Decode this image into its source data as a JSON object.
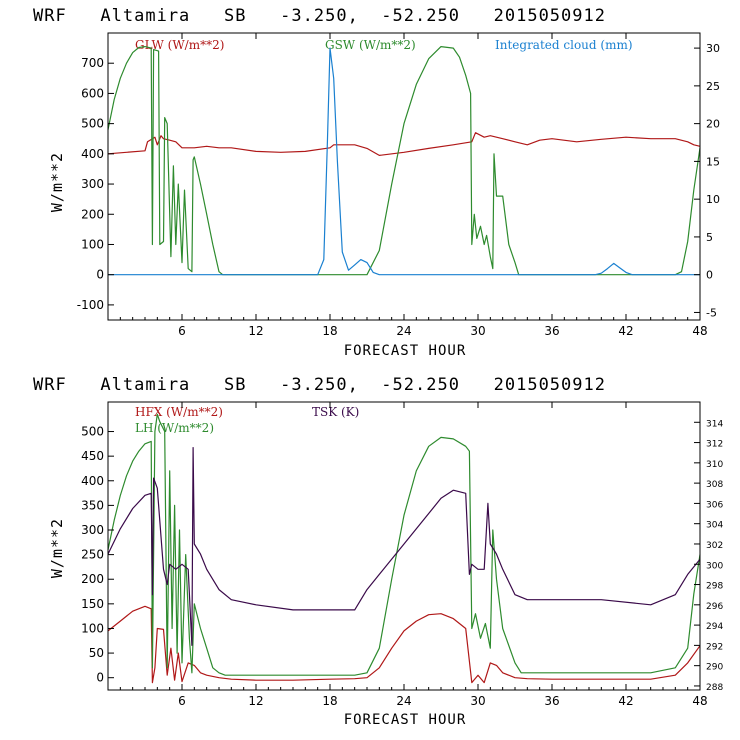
{
  "chart_data": [
    {
      "type": "line",
      "title": "WRF   Altamira   SB   -3.250,  -52.250   2015050912",
      "xlabel": "FORECAST HOUR",
      "ylabel": "W/m**2",
      "xlim": [
        0,
        48
      ],
      "ylim": [
        -150,
        800
      ],
      "xticks": [
        6,
        12,
        18,
        24,
        30,
        36,
        42,
        48
      ],
      "yticks": [
        -100,
        0,
        100,
        200,
        300,
        400,
        500,
        600,
        700
      ],
      "y2lim": [
        -6,
        32
      ],
      "y2ticks": [
        -5,
        0,
        5,
        10,
        15,
        20,
        25,
        30
      ],
      "series": [
        {
          "name": "GLW (W/m**2)",
          "color": "#b01818",
          "axis": "left",
          "x": [
            0,
            3,
            3.2,
            3.8,
            4,
            4.3,
            4.5,
            5,
            5.5,
            6,
            7,
            8,
            9,
            10,
            12,
            14,
            16,
            18,
            18.3,
            20,
            21,
            22,
            24,
            26,
            28,
            29.5,
            29.8,
            30.5,
            31,
            32,
            33,
            34,
            35,
            36,
            38,
            40,
            42,
            44,
            46,
            47,
            47.5,
            48
          ],
          "values": [
            400,
            410,
            440,
            455,
            430,
            460,
            450,
            445,
            440,
            420,
            420,
            425,
            420,
            420,
            408,
            405,
            408,
            420,
            430,
            430,
            418,
            395,
            405,
            418,
            430,
            440,
            470,
            455,
            460,
            450,
            440,
            430,
            445,
            450,
            440,
            448,
            455,
            450,
            450,
            440,
            430,
            425
          ]
        },
        {
          "name": "GSW (W/m**2)",
          "color": "#2e8b2e",
          "axis": "left",
          "x": [
            0,
            0.5,
            1,
            1.5,
            2,
            2.5,
            3,
            3.5,
            3.6,
            3.7,
            4.1,
            4.2,
            4.5,
            4.6,
            4.8,
            5.1,
            5.3,
            5.5,
            5.7,
            6.0,
            6.2,
            6.5,
            6.8,
            6.9,
            7.0,
            7.5,
            8,
            8.5,
            9,
            9.3,
            20,
            21,
            22,
            23,
            24,
            25,
            26,
            27,
            28,
            28.5,
            29,
            29.4,
            29.5,
            29.7,
            29.9,
            30.2,
            30.5,
            30.7,
            31,
            31.2,
            31.3,
            31.5,
            32,
            32.5,
            33,
            33.3,
            46,
            46.5,
            47,
            47.5,
            48
          ],
          "values": [
            480,
            580,
            650,
            700,
            735,
            752,
            755,
            750,
            100,
            745,
            740,
            100,
            110,
            520,
            500,
            60,
            360,
            100,
            300,
            40,
            280,
            20,
            10,
            380,
            390,
            300,
            200,
            100,
            10,
            0,
            0,
            0,
            80,
            300,
            500,
            630,
            715,
            755,
            750,
            720,
            660,
            600,
            100,
            200,
            120,
            160,
            100,
            130,
            60,
            20,
            400,
            260,
            260,
            100,
            40,
            0,
            0,
            10,
            110,
            280,
            420
          ]
        },
        {
          "name": "Integrated cloud (mm)",
          "color": "#1a80d0",
          "axis": "right",
          "x": [
            0,
            17.0,
            17.5,
            17.8,
            18.0,
            18.3,
            18.6,
            19.0,
            19.5,
            20.0,
            20.5,
            21.0,
            21.5,
            22.0,
            38,
            39.5,
            40.0,
            40.5,
            41.0,
            41.5,
            42.0,
            42.5,
            48
          ],
          "values": [
            0,
            0,
            2,
            18,
            30,
            26,
            15,
            3,
            0.6,
            1.3,
            2.0,
            1.6,
            0.3,
            0,
            0,
            0,
            0.2,
            0.8,
            1.5,
            0.9,
            0.3,
            0,
            0
          ]
        }
      ],
      "legend": [
        "GLW (W/m**2)",
        "GSW (W/m**2)",
        "Integrated cloud (mm)"
      ]
    },
    {
      "type": "line",
      "title": "WRF   Altamira   SB   -3.250,  -52.250   2015050912",
      "xlabel": "FORECAST HOUR",
      "ylabel": "W/m**2",
      "xlim": [
        0,
        48
      ],
      "ylim": [
        -25,
        560
      ],
      "xticks": [
        6,
        12,
        18,
        24,
        30,
        36,
        42,
        48
      ],
      "yticks": [
        0,
        50,
        100,
        150,
        200,
        250,
        300,
        350,
        400,
        450,
        500
      ],
      "y2lim": [
        287.6,
        316
      ],
      "y2ticks": [
        288,
        290,
        292,
        294,
        296,
        298,
        300,
        302,
        304,
        306,
        308,
        310,
        312,
        314
      ],
      "series": [
        {
          "name": "HFX (W/m**2)",
          "color": "#b01818",
          "axis": "left",
          "x": [
            0,
            1,
            2,
            3,
            3.5,
            3.6,
            3.8,
            4,
            4.5,
            4.8,
            5.1,
            5.4,
            5.7,
            6,
            6.5,
            7,
            7.5,
            8,
            9,
            10,
            12,
            15,
            18,
            20,
            21,
            22,
            23,
            24,
            25,
            26,
            27,
            28,
            29,
            29.5,
            30,
            30.5,
            31,
            31.5,
            32,
            33,
            34,
            36,
            40,
            44,
            46,
            47,
            48
          ],
          "values": [
            95,
            115,
            135,
            145,
            140,
            -10,
            20,
            100,
            98,
            5,
            60,
            -5,
            50,
            -8,
            30,
            25,
            10,
            5,
            0,
            -3,
            -5,
            -5,
            -3,
            -2,
            0,
            20,
            60,
            95,
            115,
            128,
            130,
            120,
            100,
            -10,
            5,
            -10,
            30,
            25,
            10,
            0,
            -2,
            -3,
            -3,
            -3,
            5,
            30,
            65
          ]
        },
        {
          "name": "LH (W/m**2)",
          "color": "#2e8b2e",
          "axis": "left",
          "x": [
            0,
            0.5,
            1,
            1.5,
            2,
            2.5,
            3,
            3.5,
            3.6,
            3.8,
            4,
            4.2,
            4.6,
            4.8,
            5.0,
            5.2,
            5.4,
            5.6,
            5.8,
            6.0,
            6.3,
            6.6,
            6.8,
            7.0,
            7.5,
            8,
            8.5,
            9,
            9.5,
            20,
            21,
            22,
            23,
            24,
            25,
            26,
            27,
            28,
            29,
            29.3,
            29.5,
            29.8,
            30.2,
            30.6,
            31.0,
            31.2,
            31.5,
            32,
            33,
            33.5,
            44,
            46,
            47,
            47.5,
            48
          ],
          "values": [
            260,
            320,
            370,
            410,
            440,
            460,
            475,
            480,
            20,
            500,
            535,
            520,
            500,
            20,
            420,
            100,
            350,
            50,
            300,
            30,
            250,
            80,
            10,
            150,
            100,
            60,
            20,
            10,
            5,
            5,
            10,
            60,
            200,
            330,
            420,
            470,
            488,
            485,
            470,
            460,
            100,
            130,
            80,
            110,
            60,
            300,
            200,
            100,
            30,
            10,
            10,
            20,
            60,
            170,
            250
          ]
        },
        {
          "name": "TSK (K)",
          "color": "#3a0a4a",
          "axis": "right",
          "x": [
            0,
            1,
            2,
            3,
            3.5,
            3.6,
            3.7,
            4,
            4.5,
            4.8,
            5,
            5.5,
            6,
            6.5,
            6.8,
            6.9,
            7,
            7.5,
            8,
            9,
            10,
            12,
            15,
            18,
            20,
            21,
            22,
            24,
            26,
            27,
            28,
            29,
            29.3,
            29.5,
            30,
            30.5,
            30.8,
            31,
            31.5,
            32,
            33,
            34,
            36,
            40,
            44,
            46,
            47,
            48
          ],
          "values": [
            301,
            303.5,
            305.5,
            306.8,
            307,
            297,
            308.5,
            307.5,
            299.5,
            298,
            300,
            299.5,
            300,
            299.5,
            292,
            311.5,
            302,
            301,
            299.5,
            297.5,
            296.5,
            296,
            295.5,
            295.5,
            295.5,
            297.5,
            299,
            302,
            305,
            306.5,
            307.3,
            307,
            299,
            300,
            299.5,
            299.5,
            306,
            302,
            301,
            299.5,
            297,
            296.5,
            296.5,
            296.5,
            296,
            297,
            299,
            300.5
          ]
        }
      ],
      "legend": [
        "HFX (W/m**2)",
        "LH (W/m**2)",
        "TSK (K)"
      ]
    }
  ]
}
